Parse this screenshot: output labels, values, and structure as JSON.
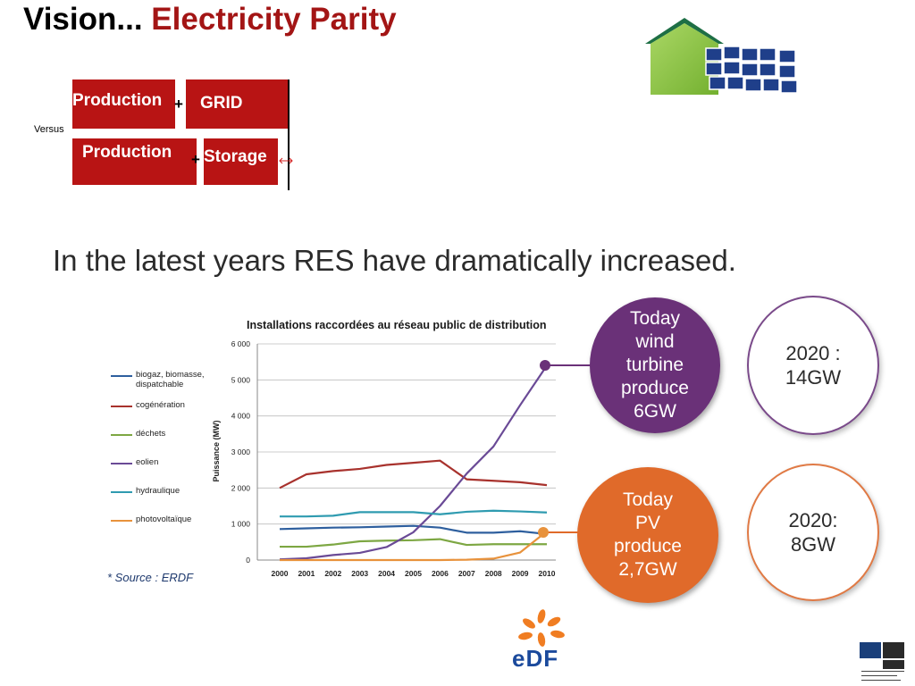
{
  "title": {
    "part1": "Vision... ",
    "part2": "Electricity Parity"
  },
  "diagram": {
    "production_top": "Production",
    "grid": "GRID",
    "production_bottom": "Production",
    "storage": "Storage",
    "plus": "+",
    "versus": "Versus"
  },
  "heading": "In the latest years RES have dramatically increased.",
  "source": "* Source : ERDF",
  "circles": {
    "wind_today": "Today\nwind\nturbine\nproduce\n6GW",
    "wind_2020": "2020 :\n14GW",
    "pv_today": "Today\nPV\nproduce\n2,7GW",
    "pv_2020": "2020:\n8GW"
  },
  "colors": {
    "title_accent": "#a31515",
    "box_red": "#b81414",
    "wind_purple": "#6a3178",
    "pv_orange": "#e06a2a"
  },
  "logos": {
    "edf": "EDF"
  },
  "chart_data": {
    "type": "line",
    "title": "Installations raccordées au réseau public de distribution",
    "ylabel": "Puissance (MW)",
    "xlabel": "",
    "x": [
      "2000",
      "2001",
      "2002",
      "2003",
      "2004",
      "2005",
      "2006",
      "2007",
      "2008",
      "2009",
      "2010"
    ],
    "ylim": [
      0,
      6000
    ],
    "yticks": [
      "0",
      "1 000",
      "2 000",
      "3 000",
      "4 000",
      "5 000",
      "6 000"
    ],
    "grid": true,
    "legend_position": "left",
    "series": [
      {
        "name": "biogaz, biomasse, dispatchable",
        "color": "#2e5f9e",
        "values": [
          860,
          880,
          900,
          910,
          930,
          950,
          900,
          760,
          760,
          800,
          720
        ]
      },
      {
        "name": "cogénération",
        "color": "#a8322d",
        "values": [
          2000,
          2380,
          2470,
          2530,
          2640,
          2700,
          2760,
          2240,
          2200,
          2160,
          2080
        ]
      },
      {
        "name": "déchets",
        "color": "#7da743",
        "values": [
          370,
          370,
          430,
          520,
          540,
          550,
          580,
          420,
          440,
          440,
          440
        ]
      },
      {
        "name": "eolien",
        "color": "#6a4a96",
        "values": [
          20,
          50,
          140,
          200,
          360,
          770,
          1500,
          2400,
          3150,
          4300,
          5400
        ]
      },
      {
        "name": "hydraulique",
        "color": "#2f9bb0",
        "values": [
          1210,
          1210,
          1230,
          1330,
          1330,
          1330,
          1270,
          1340,
          1370,
          1350,
          1320
        ]
      },
      {
        "name": "photovoltaïque",
        "color": "#e8923c",
        "values": [
          0,
          0,
          0,
          0,
          0,
          0,
          0,
          10,
          40,
          210,
          800
        ]
      }
    ]
  }
}
